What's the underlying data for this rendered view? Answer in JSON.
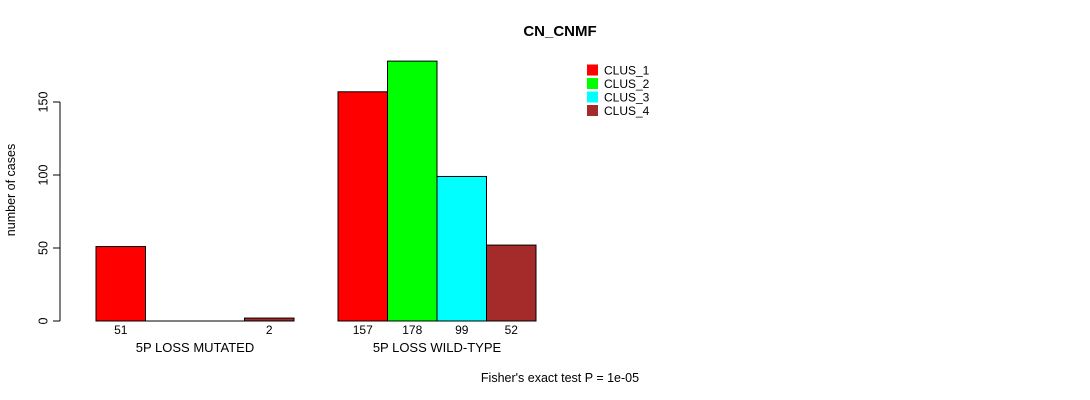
{
  "page": {
    "background": "#ffffff",
    "text_color": "#000000"
  },
  "chart_data": {
    "type": "bar",
    "title": "CN_CNMF",
    "ylabel": "number of cases",
    "xlabel": "",
    "ylim": [
      0,
      150
    ],
    "yticks": [
      0,
      50,
      100,
      150
    ],
    "grid": false,
    "legend_position": "top-right",
    "categories": [
      "5P LOSS MUTATED",
      "5P LOSS WILD-TYPE"
    ],
    "series": [
      {
        "name": "CLUS_1",
        "color": "#ff0000",
        "values": [
          51,
          157
        ]
      },
      {
        "name": "CLUS_2",
        "color": "#00ff00",
        "values": [
          0,
          178
        ]
      },
      {
        "name": "CLUS_3",
        "color": "#00ffff",
        "values": [
          0,
          99
        ]
      },
      {
        "name": "CLUS_4",
        "color": "#a52a2a",
        "values": [
          2,
          52
        ]
      }
    ],
    "show_zero_value_labels": false,
    "bar_border_color": "#000000",
    "axis_color": "#000000",
    "annotation": "Fisher's exact test P = 1e-05"
  }
}
